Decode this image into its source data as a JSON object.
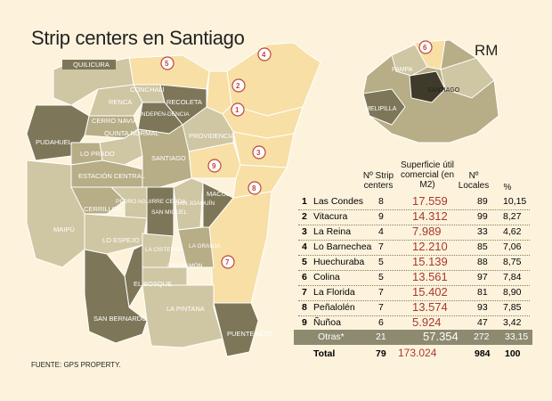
{
  "title": "Strip centers en Santiago",
  "source": "FUENTE: GPS PROPERTY.",
  "inset_label": "RM",
  "inset_regions": [
    "6",
    "PAMPA",
    "SANTIAGO",
    "MELIPILLA"
  ],
  "communes": [
    "QUILICURA",
    "RENCA",
    "CONCHALÍ",
    "RECOLETA",
    "INDEPEN-DENCIA",
    "CERRO NAVIA",
    "QUINTA NORMAL",
    "PUDAHUEL",
    "LO PRADO",
    "ESTACIÓN CENTRAL",
    "SANTIAGO",
    "PROVIDENCIA",
    "MAIPÚ",
    "CERRILLOS",
    "PEDRO AGUIRRE CERDA",
    "SAN MIGUEL",
    "SAN JOAQUÍN",
    "MACUL",
    "LO ESPEJO",
    "LA CISTERNA",
    "LA GRANJA",
    "SAN RAMÓN",
    "EL BOSQUE",
    "SAN BERNARDO",
    "LA PINTANA",
    "PUENTE ALTO"
  ],
  "map_badges": [
    "1",
    "2",
    "3",
    "4",
    "5",
    "6",
    "7",
    "8",
    "9"
  ],
  "colors": {
    "highlight": "#f7dfa5",
    "dark": "#7d7658",
    "mid": "#b7ad86",
    "light": "#cfc6a3",
    "accent": "#c0473b",
    "background": "#fdf3dc"
  },
  "table": {
    "headers": {
      "strip": "Nº Strip centers",
      "superficie": "Superficie útil comercial (en M2)",
      "locales": "Nº Locales",
      "pct": "%"
    },
    "rows": [
      {
        "n": "1",
        "name": "Las Condes",
        "strip": "8",
        "superficie": "17.559",
        "locales": "89",
        "pct": "10,15"
      },
      {
        "n": "2",
        "name": "Vitacura",
        "strip": "9",
        "superficie": "14.312",
        "locales": "99",
        "pct": "8,27"
      },
      {
        "n": "3",
        "name": "La Reina",
        "strip": "4",
        "superficie": "7.989",
        "locales": "33",
        "pct": "4,62"
      },
      {
        "n": "4",
        "name": "Lo Barnechea",
        "strip": "7",
        "superficie": "12.210",
        "locales": "85",
        "pct": "7,06"
      },
      {
        "n": "5",
        "name": "Huechuraba",
        "strip": "5",
        "superficie": "15.139",
        "locales": "88",
        "pct": "8,75"
      },
      {
        "n": "6",
        "name": "Colina",
        "strip": "5",
        "superficie": "13.561",
        "locales": "97",
        "pct": "7,84"
      },
      {
        "n": "7",
        "name": "La Florida",
        "strip": "7",
        "superficie": "15.402",
        "locales": "81",
        "pct": "8,90"
      },
      {
        "n": "8",
        "name": "Peñalolén",
        "strip": "7",
        "superficie": "13.574",
        "locales": "93",
        "pct": "7,85"
      },
      {
        "n": "9",
        "name": "Ñuñoa",
        "strip": "6",
        "superficie": "5.924",
        "locales": "47",
        "pct": "3,42"
      }
    ],
    "otras": {
      "name": "Otras*",
      "strip": "21",
      "superficie": "57.354",
      "locales": "272",
      "pct": "33,15"
    },
    "total": {
      "name": "Total",
      "strip": "79",
      "superficie": "173.024",
      "locales": "984",
      "pct": "100"
    }
  }
}
